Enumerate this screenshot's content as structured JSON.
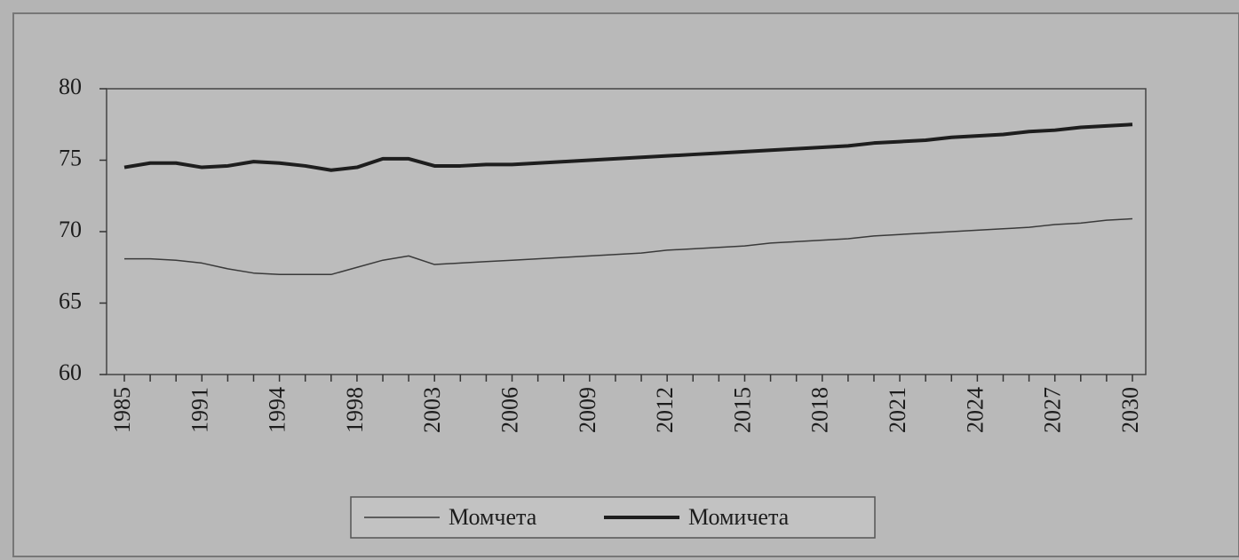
{
  "chart_data": {
    "type": "line",
    "categories": [
      "1985",
      null,
      null,
      "1991",
      null,
      null,
      "1994",
      null,
      null,
      "1998",
      null,
      null,
      "2003",
      null,
      null,
      "2006",
      null,
      null,
      "2009",
      null,
      null,
      "2012",
      null,
      null,
      "2015",
      null,
      null,
      "2018",
      null,
      null,
      "2021",
      null,
      null,
      "2024",
      null,
      null,
      "2027",
      null,
      null,
      "2030"
    ],
    "series": [
      {
        "name": "Момчета",
        "color": "#3a3a3a",
        "line_width": 1.5,
        "values": [
          68.1,
          68.1,
          68.0,
          67.8,
          67.4,
          67.1,
          67.0,
          67.0,
          67.0,
          67.5,
          68.0,
          68.3,
          67.7,
          67.8,
          67.9,
          68.0,
          68.1,
          68.2,
          68.3,
          68.4,
          68.5,
          68.7,
          68.8,
          68.9,
          69.0,
          69.2,
          69.3,
          69.4,
          69.5,
          69.7,
          69.8,
          69.9,
          70.0,
          70.1,
          70.2,
          70.3,
          70.5,
          70.6,
          70.8,
          70.9
        ]
      },
      {
        "name": "Момичета",
        "color": "#1e1e1e",
        "line_width": 4,
        "values": [
          74.5,
          74.8,
          74.8,
          74.5,
          74.6,
          74.9,
          74.8,
          74.6,
          74.3,
          74.5,
          75.1,
          75.1,
          74.6,
          74.6,
          74.7,
          74.7,
          74.8,
          74.9,
          75.0,
          75.1,
          75.2,
          75.3,
          75.4,
          75.5,
          75.6,
          75.7,
          75.8,
          75.9,
          76.0,
          76.2,
          76.3,
          76.4,
          76.6,
          76.7,
          76.8,
          77.0,
          77.1,
          77.3,
          77.4,
          77.5
        ]
      }
    ],
    "ylim": [
      60,
      80
    ],
    "yticks": [
      60,
      65,
      70,
      75,
      80
    ],
    "grid": false
  }
}
